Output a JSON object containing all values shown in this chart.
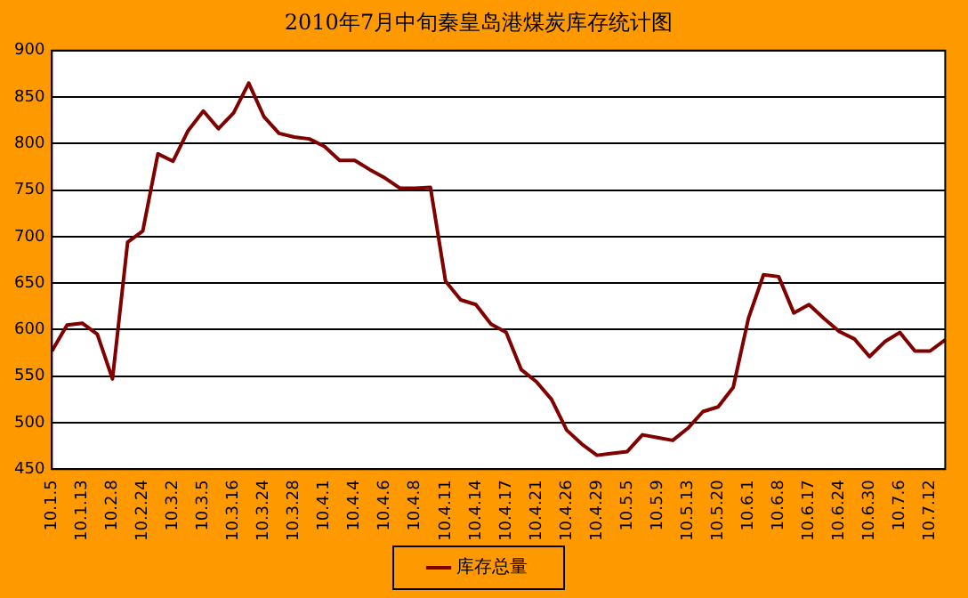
{
  "chart_data": {
    "type": "line",
    "title": "2010年7月中旬秦皇岛港煤炭库存统计图",
    "categories": [
      "10.1.5",
      null,
      "10.1.13",
      null,
      "10.2.8",
      null,
      "10.2.24",
      null,
      "10.3.2",
      null,
      "10.3.5",
      null,
      "10.3.16",
      null,
      "10.3.24",
      null,
      "10.3.28",
      null,
      "10.4.1",
      null,
      "10.4.4",
      null,
      "10.4.6",
      null,
      "10.4.8",
      null,
      "10.4.11",
      null,
      "10.4.14",
      null,
      "10.4.17",
      null,
      "10.4.21",
      null,
      "10.4.26",
      null,
      "10.4.29",
      null,
      "10.5.5",
      null,
      "10.5.9",
      null,
      "10.5.13",
      null,
      "10.5.20",
      null,
      "10.6.1",
      null,
      "10.6.8",
      null,
      "10.6.17",
      null,
      "10.6.24",
      null,
      "10.6.30",
      null,
      "10.7.6",
      null,
      "10.7.12",
      null
    ],
    "series": [
      {
        "name": "库存总量",
        "color": "#800000",
        "values": [
          577,
          605,
          607,
          595,
          547,
          694,
          706,
          789,
          781,
          814,
          835,
          816,
          833,
          865,
          829,
          811,
          807,
          805,
          797,
          782,
          782,
          772,
          763,
          752,
          752,
          753,
          652,
          632,
          627,
          606,
          597,
          557,
          544,
          525,
          492,
          477,
          465,
          467,
          469,
          487,
          484,
          481,
          494,
          512,
          517,
          538,
          612,
          659,
          657,
          618,
          627,
          612,
          598,
          590,
          571,
          587,
          597,
          577,
          577,
          589
        ]
      }
    ],
    "ylim": [
      450,
      900
    ],
    "yticks": [
      450,
      500,
      550,
      600,
      650,
      700,
      750,
      800,
      850,
      900
    ],
    "grid": "y",
    "legend": "bottom",
    "marker": "none",
    "line_style": "solid"
  }
}
